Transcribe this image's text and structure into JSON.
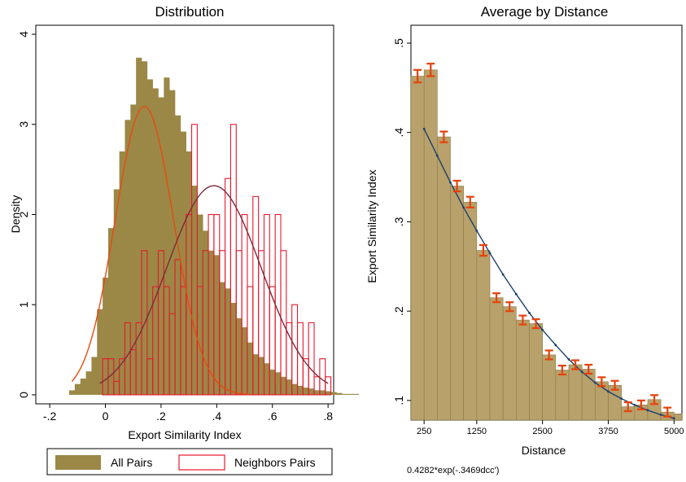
{
  "chart_data": [
    {
      "type": "histogram",
      "title": "Distribution",
      "xlabel": "Export Similarity Index",
      "ylabel": "Density",
      "xlim": [
        -0.25,
        0.82
      ],
      "ylim": [
        -0.1,
        4.1
      ],
      "x_ticks": [
        {
          "v": -0.2,
          "label": "-.2"
        },
        {
          "v": 0,
          "label": "0"
        },
        {
          "v": 0.2,
          "label": ".2"
        },
        {
          "v": 0.4,
          "label": ".4"
        },
        {
          "v": 0.6,
          "label": ".6"
        },
        {
          "v": 0.8,
          "label": ".8"
        }
      ],
      "y_ticks": [
        {
          "v": 0,
          "label": "0"
        },
        {
          "v": 1,
          "label": "1"
        },
        {
          "v": 2,
          "label": "2"
        },
        {
          "v": 3,
          "label": "3"
        },
        {
          "v": 4,
          "label": "4"
        }
      ],
      "legend": {
        "placement": "bottom",
        "entries": [
          {
            "label": "All Pairs",
            "color": "#9b8846",
            "style": "filled"
          },
          {
            "label": "Neighbors Pairs",
            "color": "#e8182c",
            "style": "outline"
          }
        ]
      },
      "series": [
        {
          "name": "All Pairs",
          "color": "#9b8846",
          "bin_start": -0.13,
          "bin_width": 0.02,
          "values": [
            0.05,
            0.12,
            0.18,
            0.26,
            0.42,
            0.95,
            1.3,
            1.85,
            2.28,
            2.7,
            3.05,
            3.22,
            3.74,
            3.7,
            3.5,
            3.4,
            3.3,
            3.52,
            3.38,
            3.1,
            2.92,
            2.7,
            2.32,
            2.0,
            1.82,
            1.6,
            1.55,
            1.25,
            1.18,
            1.02,
            0.85,
            0.75,
            0.58,
            0.45,
            0.42,
            0.35,
            0.28,
            0.25,
            0.2,
            0.17,
            0.12,
            0.1,
            0.08,
            0.07,
            0.05,
            0.05,
            0.04,
            0.03,
            0.02,
            0.01,
            0.01,
            0.01
          ]
        },
        {
          "name": "Neighbors Pairs",
          "color": "#e8182c",
          "bin_start": -0.01,
          "bin_width": 0.02,
          "values": [
            0.4,
            0.4,
            0.15,
            0.4,
            0.8,
            0.5,
            0.8,
            1.6,
            0.4,
            1.2,
            1.6,
            1.2,
            0.9,
            1.5,
            1.2,
            2.0,
            3.0,
            1.2,
            1.6,
            2.0,
            2.0,
            1.6,
            2.4,
            3.0,
            1.6,
            2.0,
            1.2,
            2.2,
            1.6,
            2.0,
            1.2,
            2.0,
            1.6,
            0.8,
            1.0,
            0.8,
            0.4,
            0.8,
            0.2,
            0.4,
            0.2
          ]
        }
      ],
      "normal_curves": [
        {
          "color": "#e64a12",
          "mean": 0.14,
          "peak": 3.2,
          "sd": 0.105,
          "x_start": -0.12,
          "x_end": 0.52
        },
        {
          "color": "#7e2b3c",
          "mean": 0.39,
          "peak": 2.32,
          "sd": 0.17,
          "x_start": -0.02,
          "x_end": 0.8
        }
      ]
    },
    {
      "type": "bar",
      "title": "Average by Distance",
      "xlabel": "Distance",
      "ylabel": "Export Similarity Index",
      "xlim": [
        0,
        5150
      ],
      "ylim": [
        0.078,
        0.52
      ],
      "x_ticks": [
        {
          "v": 250,
          "label": "250"
        },
        {
          "v": 1250,
          "label": "1250"
        },
        {
          "v": 2500,
          "label": "2500"
        },
        {
          "v": 3750,
          "label": "3750"
        },
        {
          "v": 5000,
          "label": "5000"
        }
      ],
      "y_ticks": [
        {
          "v": 0.1,
          "label": ".1"
        },
        {
          "v": 0.2,
          "label": ".2"
        },
        {
          "v": 0.3,
          "label": ".3"
        },
        {
          "v": 0.4,
          "label": ".4"
        },
        {
          "v": 0.5,
          "label": ".5"
        }
      ],
      "bar_color": "#b8a16a",
      "error_color": "#e6420e",
      "fit_color": "#1d3f6e",
      "note": "0.4282*exp(-.3469dcc')",
      "bins": [
        {
          "x0": 0,
          "x1": 250,
          "y": 0.463,
          "err": 0.007
        },
        {
          "x0": 250,
          "x1": 500,
          "y": 0.47,
          "err": 0.007
        },
        {
          "x0": 500,
          "x1": 750,
          "y": 0.395,
          "err": 0.006
        },
        {
          "x0": 750,
          "x1": 1000,
          "y": 0.34,
          "err": 0.006
        },
        {
          "x0": 1000,
          "x1": 1250,
          "y": 0.322,
          "err": 0.006
        },
        {
          "x0": 1250,
          "x1": 1500,
          "y": 0.268,
          "err": 0.006
        },
        {
          "x0": 1500,
          "x1": 1750,
          "y": 0.215,
          "err": 0.005
        },
        {
          "x0": 1750,
          "x1": 2000,
          "y": 0.205,
          "err": 0.005
        },
        {
          "x0": 2000,
          "x1": 2250,
          "y": 0.19,
          "err": 0.005
        },
        {
          "x0": 2250,
          "x1": 2500,
          "y": 0.186,
          "err": 0.005
        },
        {
          "x0": 2500,
          "x1": 2750,
          "y": 0.151,
          "err": 0.005
        },
        {
          "x0": 2750,
          "x1": 3000,
          "y": 0.134,
          "err": 0.005
        },
        {
          "x0": 3000,
          "x1": 3250,
          "y": 0.14,
          "err": 0.005
        },
        {
          "x0": 3250,
          "x1": 3500,
          "y": 0.135,
          "err": 0.005
        },
        {
          "x0": 3500,
          "x1": 3750,
          "y": 0.121,
          "err": 0.005
        },
        {
          "x0": 3750,
          "x1": 4000,
          "y": 0.117,
          "err": 0.005
        },
        {
          "x0": 4000,
          "x1": 4250,
          "y": 0.093,
          "err": 0.005
        },
        {
          "x0": 4250,
          "x1": 4500,
          "y": 0.095,
          "err": 0.005
        },
        {
          "x0": 4500,
          "x1": 4750,
          "y": 0.101,
          "err": 0.005
        },
        {
          "x0": 4750,
          "x1": 5000,
          "y": 0.087,
          "err": 0.005
        },
        {
          "x0": 5000,
          "x1": 5150,
          "y": 0.085,
          "err": 0
        }
      ],
      "fit_curve": {
        "x": [
          250,
          500,
          750,
          1000,
          1250,
          1500,
          1750,
          2000,
          2250,
          2500,
          2750,
          3000,
          3250,
          3500,
          3750,
          4000,
          4250,
          4500,
          4750,
          5000
        ],
        "y": [
          0.404,
          0.374,
          0.344,
          0.316,
          0.29,
          0.265,
          0.241,
          0.219,
          0.198,
          0.179,
          0.162,
          0.146,
          0.132,
          0.12,
          0.11,
          0.102,
          0.095,
          0.089,
          0.084,
          0.08
        ]
      }
    }
  ]
}
